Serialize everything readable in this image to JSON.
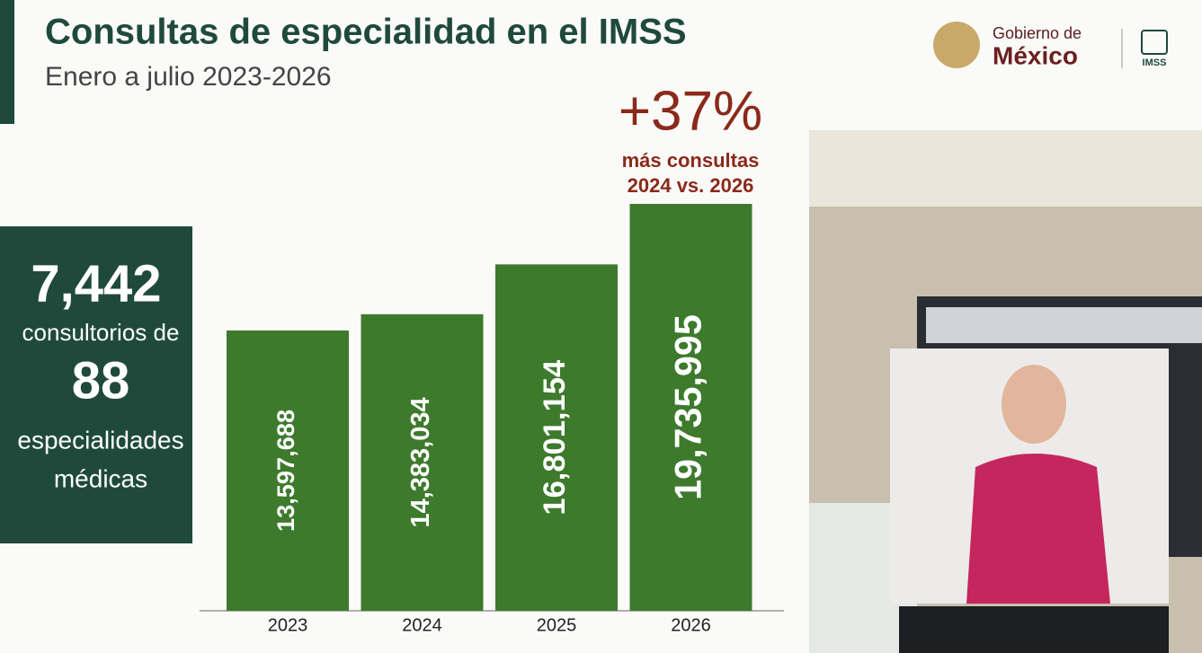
{
  "chart_data": {
    "type": "bar",
    "title": "Consultas de especialidad en el IMSS",
    "subtitle": "Enero a julio 2023-2026",
    "categories": [
      "2023",
      "2024",
      "2025",
      "2026"
    ],
    "values": [
      13597688,
      14383034,
      16801154,
      19735995
    ],
    "value_labels": [
      "13,597,688",
      "14,383,034",
      "16,801,154",
      "19,735,995"
    ],
    "color": "#3d7a2c",
    "annotations": [
      "+37%",
      "más consultas",
      "2024 vs. 2026"
    ]
  },
  "panel": {
    "number1": "7,442",
    "text1": "consultorios de",
    "number2": "88",
    "text2": "especialidades",
    "text3": "médicas"
  },
  "logo": {
    "line1": "Gobierno de",
    "line2": "México",
    "imss": "IMSS"
  }
}
